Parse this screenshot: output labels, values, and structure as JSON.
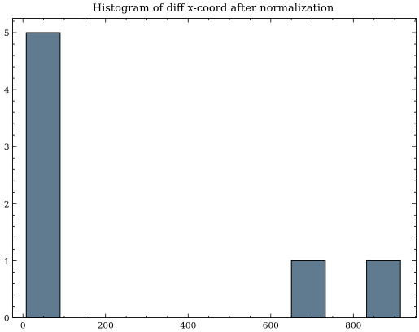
{
  "chart_data": {
    "type": "bar",
    "title": "Histogram of diff x-coord after normalization",
    "xlabel": "",
    "ylabel": "",
    "xlim": [
      -25,
      952
    ],
    "ylim": [
      0,
      5.25
    ],
    "bins": [
      {
        "start": 8,
        "end": 90,
        "count": 5
      },
      {
        "start": 650,
        "end": 732,
        "count": 1
      },
      {
        "start": 832,
        "end": 914,
        "count": 1
      }
    ],
    "x_ticks": [
      {
        "value": 0,
        "label": "0"
      },
      {
        "value": 200,
        "label": "200"
      },
      {
        "value": 400,
        "label": "400"
      },
      {
        "value": 600,
        "label": "600"
      },
      {
        "value": 800,
        "label": "800"
      }
    ],
    "y_ticks": [
      {
        "value": 0,
        "label": "0"
      },
      {
        "value": 1,
        "label": "1"
      },
      {
        "value": 2,
        "label": "2"
      },
      {
        "value": 3,
        "label": "3"
      },
      {
        "value": 4,
        "label": "4"
      },
      {
        "value": 5,
        "label": "5"
      }
    ],
    "x_minor_step": 50,
    "y_minor_step": 0.2,
    "grid": false,
    "bar_color": "#607b8f"
  }
}
